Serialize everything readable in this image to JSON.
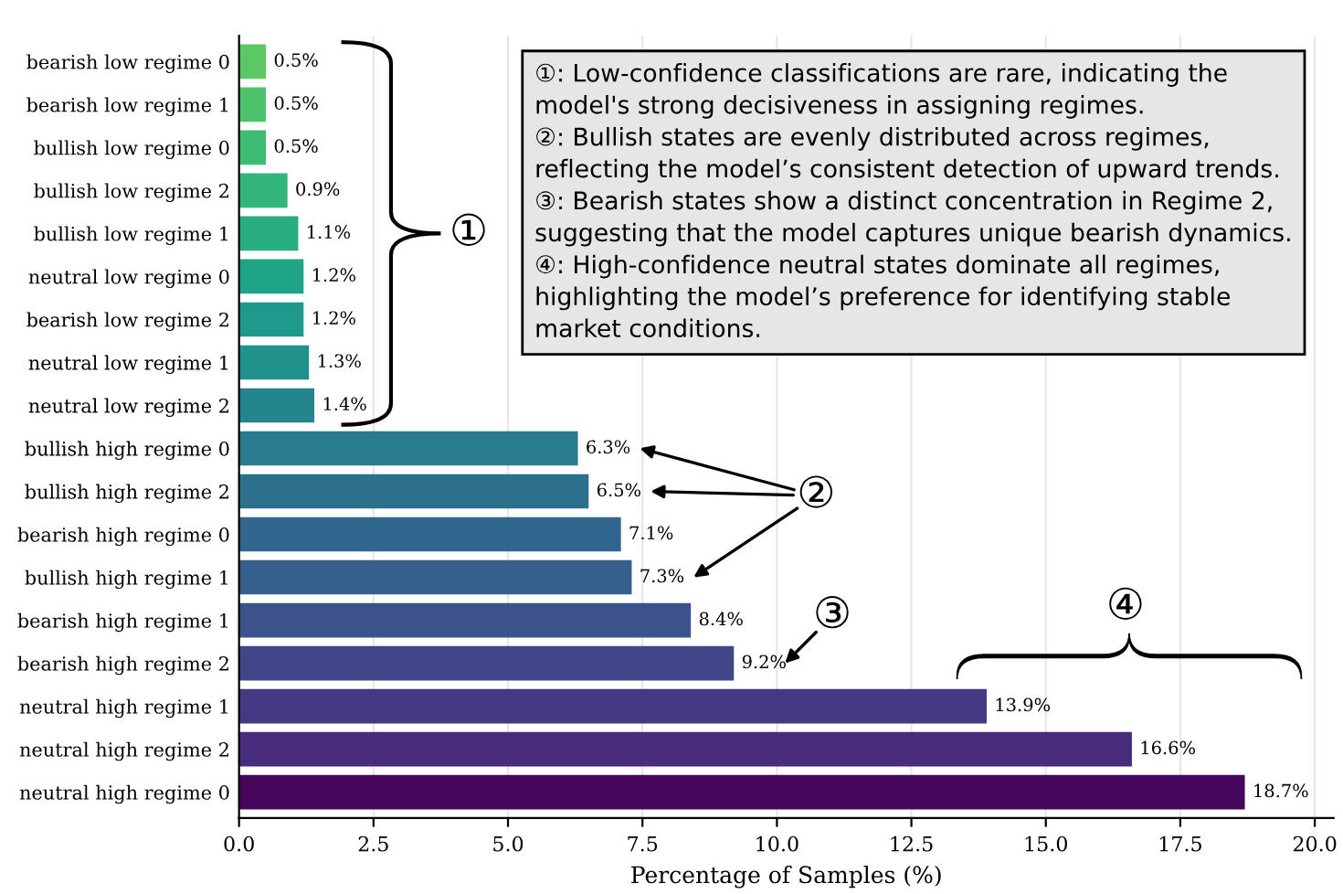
{
  "chart_data": {
    "type": "bar",
    "orientation": "horizontal",
    "xlabel": "Percentage of Samples (%)",
    "categories": [
      "bearish low regime 0",
      "bearish low regime 1",
      "bullish low regime 0",
      "bullish low regime 2",
      "bullish low regime 1",
      "neutral low regime 0",
      "bearish low regime 2",
      "neutral low regime 1",
      "neutral low regime 2",
      "bullish high regime 0",
      "bullish high regime 2",
      "bearish high regime 0",
      "bullish high regime 1",
      "bearish high regime 1",
      "bearish high regime 2",
      "neutral high regime 1",
      "neutral high regime 2",
      "neutral high regime 0"
    ],
    "values": [
      0.5,
      0.5,
      0.5,
      0.9,
      1.1,
      1.2,
      1.2,
      1.3,
      1.4,
      6.3,
      6.5,
      7.1,
      7.3,
      8.4,
      9.2,
      13.9,
      16.6,
      18.7
    ],
    "value_labels": [
      "0.5%",
      "0.5%",
      "0.5%",
      "0.9%",
      "1.1%",
      "1.2%",
      "1.2%",
      "1.3%",
      "1.4%",
      "6.3%",
      "6.5%",
      "7.1%",
      "7.3%",
      "8.4%",
      "9.2%",
      "13.9%",
      "16.6%",
      "18.7%"
    ],
    "colors": [
      "#5cc863",
      "#4ec36b",
      "#3fbc73",
      "#31b57b",
      "#27ad81",
      "#20a486",
      "#1f9a8a",
      "#21918c",
      "#25858e",
      "#297b8e",
      "#2d708e",
      "#31668e",
      "#355f8d",
      "#3b528b",
      "#404688",
      "#443983",
      "#472d7b",
      "#46065b"
    ],
    "xlim": [
      0,
      20.35
    ],
    "xticks": [
      {
        "value": 0,
        "label": "0.0"
      },
      {
        "value": 2.5,
        "label": "2.5"
      },
      {
        "value": 5,
        "label": "5.0"
      },
      {
        "value": 7.5,
        "label": "7.5"
      },
      {
        "value": 10,
        "label": "10.0"
      },
      {
        "value": 12.5,
        "label": "12.5"
      },
      {
        "value": 15,
        "label": "15.0"
      },
      {
        "value": 17.5,
        "label": "17.5"
      },
      {
        "value": 20,
        "label": "20.0"
      }
    ],
    "grid": "x",
    "annotations": [
      "①",
      "②",
      "③",
      "④",
      "①: Low-confidence classifications are rare, indicating the\nmodel's strong decisiveness in assigning regimes.",
      "②: Bullish states are evenly distributed across regimes,\nreflecting the model’s consistent detection of upward trends.",
      "③: Bearish states show a distinct concentration in Regime 2,\nsuggesting that the model captures unique bearish dynamics.",
      "④: High-confidence neutral states dominate all regimes,\nhighlighting the model’s preference for identifying stable\nmarket conditions."
    ]
  }
}
